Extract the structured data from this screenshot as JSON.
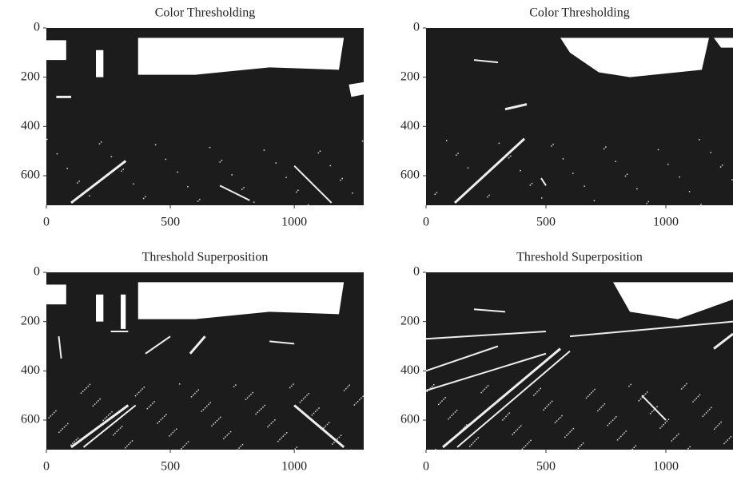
{
  "chart_data": [
    {
      "type": "image",
      "title": "Color Thresholding",
      "xlim": [
        0,
        1280
      ],
      "ylim": [
        0,
        720
      ],
      "y_inverted": true,
      "xticks": [
        0,
        500,
        1000
      ],
      "yticks": [
        0,
        200,
        400,
        600
      ]
    },
    {
      "type": "image",
      "title": "Color Thresholding",
      "xlim": [
        0,
        1280
      ],
      "ylim": [
        0,
        720
      ],
      "y_inverted": true,
      "xticks": [
        0,
        500,
        1000
      ],
      "yticks": [
        0,
        200,
        400,
        600
      ]
    },
    {
      "type": "image",
      "title": "Threshold Superposition",
      "xlim": [
        0,
        1280
      ],
      "ylim": [
        0,
        720
      ],
      "y_inverted": true,
      "xticks": [
        0,
        500,
        1000
      ],
      "yticks": [
        0,
        200,
        400,
        600
      ]
    },
    {
      "type": "image",
      "title": "Threshold Superposition",
      "xlim": [
        0,
        1280
      ],
      "ylim": [
        0,
        720
      ],
      "y_inverted": true,
      "xticks": [
        0,
        500,
        1000
      ],
      "yticks": [
        0,
        200,
        400,
        600
      ]
    }
  ]
}
